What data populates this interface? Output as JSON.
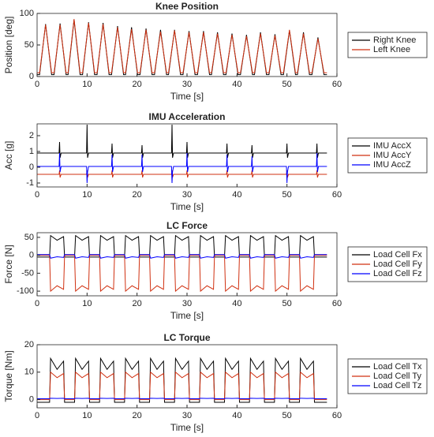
{
  "chart_data": [
    {
      "type": "line",
      "title": "Knee Position",
      "x_label": "Time [s]",
      "y_label": "Position [deg]",
      "legend": "right",
      "xlim": [
        0,
        60
      ],
      "xticks": [
        0,
        10,
        20,
        30,
        40,
        50,
        60
      ],
      "ylim": [
        0,
        100
      ],
      "yticks": [
        0,
        50,
        100
      ],
      "x": [
        0,
        0.5,
        1.7,
        2.9,
        3.4,
        4.6,
        5.8,
        6.2,
        7.4,
        8.6,
        9.1,
        10.3,
        11.5,
        12.0,
        13.2,
        14.4,
        14.9,
        16.1,
        17.3,
        17.7,
        18.9,
        20.1,
        20.6,
        21.8,
        23.0,
        23.5,
        24.7,
        25.9,
        26.3,
        27.5,
        28.7,
        29.2,
        30.4,
        31.6,
        32.1,
        33.3,
        34.5,
        34.9,
        36.1,
        37.3,
        37.8,
        39.0,
        40.2,
        40.7,
        41.9,
        43.1,
        43.5,
        44.7,
        45.9,
        46.4,
        47.6,
        48.8,
        49.3,
        50.5,
        51.7,
        52.1,
        53.3,
        54.5,
        55.0,
        56.2,
        57.4,
        58
      ],
      "series": [
        {
          "name": "Right Knee",
          "color": "#000000",
          "values": [
            3,
            3,
            83,
            3,
            3,
            84,
            3,
            3,
            90,
            3,
            3,
            86,
            3,
            3,
            85,
            3,
            3,
            80,
            3,
            3,
            78,
            3,
            3,
            76,
            3,
            3,
            74,
            3,
            3,
            74,
            3,
            3,
            72,
            3,
            3,
            72,
            3,
            3,
            70,
            3,
            3,
            68,
            3,
            3,
            66,
            3,
            3,
            70,
            3,
            3,
            67,
            3,
            3,
            73,
            3,
            3,
            70,
            3,
            3,
            62,
            3,
            3
          ]
        },
        {
          "name": "Left Knee",
          "color": "#d03010",
          "values": [
            6,
            6,
            82,
            6,
            6,
            82,
            6,
            6,
            91,
            6,
            6,
            85,
            6,
            6,
            83,
            6,
            6,
            78,
            6,
            6,
            75,
            6,
            6,
            74,
            6,
            6,
            71,
            6,
            6,
            73,
            6,
            6,
            70,
            6,
            6,
            70,
            6,
            6,
            68,
            6,
            6,
            66,
            6,
            6,
            64,
            6,
            6,
            68,
            6,
            6,
            65,
            6,
            6,
            74,
            6,
            6,
            68,
            6,
            6,
            60,
            6,
            6
          ]
        }
      ]
    },
    {
      "type": "line",
      "title": "IMU Acceleration",
      "x_label": "Time [s]",
      "y_label": "Acc [g]",
      "legend": "right",
      "xlim": [
        0,
        60
      ],
      "xticks": [
        0,
        10,
        20,
        30,
        40,
        50,
        60
      ],
      "ylim": [
        -1.25,
        2.75
      ],
      "yticks": [
        -1,
        0,
        1,
        2
      ],
      "x": [
        0,
        4.4,
        4.5,
        4.6,
        4.8,
        9.9,
        10,
        10.1,
        10.3,
        14.9,
        15,
        15.1,
        15.3,
        20.9,
        21,
        21.1,
        21.3,
        26.9,
        27,
        27.1,
        27.3,
        29.9,
        30,
        30.1,
        30.3,
        37.9,
        38,
        38.1,
        38.3,
        42.9,
        43,
        43.1,
        43.3,
        49.9,
        50,
        50.1,
        50.3,
        55.9,
        56,
        56.1,
        56.3,
        58
      ],
      "series": [
        {
          "name": "IMU AccX",
          "color": "#000000",
          "values": [
            0.9,
            0.9,
            1.6,
            0.6,
            0.9,
            0.9,
            2.7,
            0.6,
            0.9,
            0.9,
            1.5,
            0.6,
            0.9,
            0.9,
            1.4,
            0.6,
            0.9,
            0.9,
            2.7,
            0.6,
            0.9,
            0.9,
            1.6,
            0.6,
            0.9,
            0.9,
            1.5,
            0.6,
            0.9,
            0.9,
            1.4,
            0.6,
            0.9,
            0.9,
            1.5,
            0.6,
            0.9,
            0.9,
            1.5,
            0.6,
            0.9,
            0.9
          ]
        },
        {
          "name": "IMU AccY",
          "color": "#d03010",
          "values": [
            -0.45,
            -0.45,
            -0.2,
            -0.65,
            -0.45,
            -0.45,
            -0.2,
            -0.65,
            -0.45,
            -0.45,
            -0.2,
            -0.65,
            -0.45,
            -0.45,
            -0.2,
            -0.65,
            -0.45,
            -0.45,
            -0.2,
            -0.65,
            -0.45,
            -0.45,
            -0.2,
            -0.65,
            -0.45,
            -0.45,
            -0.2,
            -0.65,
            -0.45,
            -0.45,
            -0.2,
            -0.65,
            -0.45,
            -0.45,
            -0.2,
            -0.65,
            -0.45,
            -0.45,
            -0.2,
            -0.65,
            -0.45,
            -0.45
          ]
        },
        {
          "name": "IMU AccZ",
          "color": "#0000ff",
          "values": [
            0.05,
            0.05,
            0.9,
            -0.3,
            0.05,
            0.05,
            -1.0,
            -0.3,
            0.05,
            0.05,
            0.8,
            -0.3,
            0.05,
            0.05,
            0.8,
            -0.3,
            0.05,
            0.05,
            -1.0,
            -0.3,
            0.05,
            0.05,
            0.9,
            -0.3,
            0.05,
            0.05,
            0.8,
            -0.3,
            0.05,
            0.05,
            0.7,
            -0.3,
            0.05,
            0.05,
            -1.0,
            -0.3,
            0.05,
            0.05,
            0.9,
            -0.3,
            0.05,
            0.05
          ]
        }
      ]
    },
    {
      "type": "line",
      "title": "LC Force",
      "x_label": "Time [s]",
      "y_label": "Force [N]",
      "legend": "right",
      "xlim": [
        0,
        60
      ],
      "xticks": [
        0,
        10,
        20,
        30,
        40,
        50,
        60
      ],
      "ylim": [
        -113,
        63
      ],
      "yticks": [
        -100,
        -50,
        0,
        50
      ],
      "x": [
        0,
        2.5,
        2.7,
        4.0,
        5.3,
        5.5,
        7.5,
        7.7,
        9.0,
        10.3,
        10.5,
        12.5,
        12.7,
        14.0,
        15.3,
        15.5,
        17.5,
        17.7,
        19.0,
        20.3,
        20.5,
        22.5,
        22.7,
        24.0,
        25.3,
        25.5,
        27.5,
        27.7,
        29.0,
        30.3,
        30.5,
        32.5,
        32.7,
        34.0,
        35.3,
        35.5,
        37.5,
        37.7,
        39.0,
        40.3,
        40.5,
        42.5,
        42.7,
        44.0,
        45.3,
        45.5,
        47.5,
        47.7,
        49.0,
        50.3,
        50.5,
        52.5,
        52.7,
        54.0,
        55.3,
        55.5,
        58
      ],
      "series": [
        {
          "name": "Load Cell Fx",
          "color": "#000000",
          "values": [
            -5,
            -5,
            55,
            42,
            52,
            -5,
            -5,
            55,
            42,
            52,
            -5,
            -5,
            55,
            42,
            52,
            -5,
            -5,
            55,
            42,
            52,
            -5,
            -5,
            55,
            42,
            52,
            -5,
            -5,
            55,
            42,
            52,
            -5,
            -5,
            55,
            42,
            52,
            -5,
            -5,
            55,
            42,
            52,
            -5,
            -5,
            55,
            42,
            52,
            -5,
            -5,
            55,
            42,
            52,
            -5,
            -5,
            55,
            42,
            52,
            -5,
            -5
          ]
        },
        {
          "name": "Load Cell Fy",
          "color": "#d03010",
          "values": [
            0,
            0,
            -100,
            -85,
            -95,
            0,
            0,
            -100,
            -85,
            -95,
            0,
            0,
            -100,
            -85,
            -95,
            0,
            0,
            -100,
            -85,
            -95,
            0,
            0,
            -100,
            -85,
            -95,
            0,
            0,
            -100,
            -85,
            -95,
            0,
            0,
            -100,
            -85,
            -95,
            0,
            0,
            -100,
            -85,
            -95,
            0,
            0,
            -100,
            -85,
            -95,
            0,
            0,
            -100,
            -85,
            -95,
            0,
            0,
            -100,
            -85,
            -95,
            0,
            0
          ]
        },
        {
          "name": "Load Cell Fz",
          "color": "#0000ff",
          "values": [
            2,
            2,
            -8,
            -4,
            -6,
            2,
            2,
            -8,
            -4,
            -6,
            2,
            2,
            -8,
            -4,
            -6,
            2,
            2,
            -8,
            -4,
            -6,
            2,
            2,
            -8,
            -4,
            -6,
            2,
            2,
            -8,
            -4,
            -6,
            2,
            2,
            -8,
            -4,
            -6,
            2,
            2,
            -8,
            -4,
            -6,
            2,
            2,
            -8,
            -4,
            -6,
            2,
            2,
            -8,
            -4,
            -6,
            2,
            2,
            -8,
            -4,
            -6,
            2,
            2
          ]
        }
      ]
    },
    {
      "type": "line",
      "title": "LC Torque",
      "x_label": "Time [s]",
      "y_label": "Torque [Nm]",
      "legend": "right",
      "xlim": [
        0,
        60
      ],
      "xticks": [
        0,
        10,
        20,
        30,
        40,
        50,
        60
      ],
      "ylim": [
        -3,
        20
      ],
      "yticks": [
        0,
        10,
        20
      ],
      "x": [
        0,
        2.5,
        2.7,
        4.0,
        5.3,
        5.5,
        7.5,
        7.7,
        9.0,
        10.3,
        10.5,
        12.5,
        12.7,
        14.0,
        15.3,
        15.5,
        17.5,
        17.7,
        19.0,
        20.3,
        20.5,
        22.5,
        22.7,
        24.0,
        25.3,
        25.5,
        27.5,
        27.7,
        29.0,
        30.3,
        30.5,
        32.5,
        32.7,
        34.0,
        35.3,
        35.5,
        37.5,
        37.7,
        39.0,
        40.3,
        40.5,
        42.5,
        42.7,
        44.0,
        45.3,
        45.5,
        47.5,
        47.7,
        49.0,
        50.3,
        50.5,
        52.5,
        52.7,
        54.0,
        55.3,
        55.5,
        58
      ],
      "series": [
        {
          "name": "Load Cell Tx",
          "color": "#000000",
          "values": [
            -1,
            -1,
            15,
            11,
            14,
            -1,
            -1,
            15,
            11,
            14,
            -1,
            -1,
            15,
            11,
            14,
            -1,
            -1,
            15,
            11,
            14,
            -1,
            -1,
            15,
            11,
            14,
            -1,
            -1,
            15,
            11,
            14,
            -1,
            -1,
            15,
            11,
            14,
            -1,
            -1,
            15,
            11,
            14,
            -1,
            -1,
            15,
            11,
            14,
            -1,
            -1,
            15,
            11,
            14,
            -1,
            -1,
            15,
            11,
            14,
            -1,
            -1
          ]
        },
        {
          "name": "Load Cell Ty",
          "color": "#d03010",
          "values": [
            0,
            0,
            10,
            8,
            9.5,
            0,
            0,
            10,
            8,
            9.5,
            0,
            0,
            10,
            8,
            9.5,
            0,
            0,
            10,
            8,
            9.5,
            0,
            0,
            10,
            8,
            9.5,
            0,
            0,
            10,
            8,
            9.5,
            0,
            0,
            10,
            8,
            9.5,
            0,
            0,
            10,
            8,
            9.5,
            0,
            0,
            10,
            8,
            9.5,
            0,
            0,
            10,
            8,
            9.5,
            0,
            0,
            10,
            8,
            9.5,
            0,
            0
          ]
        },
        {
          "name": "Load Cell Tz",
          "color": "#0000ff",
          "values": [
            0.3,
            0.3,
            0.5,
            0.4,
            0.5,
            0.3,
            0.3,
            0.5,
            0.4,
            0.5,
            0.3,
            0.3,
            0.5,
            0.4,
            0.5,
            0.3,
            0.3,
            0.5,
            0.4,
            0.5,
            0.3,
            0.3,
            0.5,
            0.4,
            0.5,
            0.3,
            0.3,
            0.5,
            0.4,
            0.5,
            0.3,
            0.3,
            0.5,
            0.4,
            0.5,
            0.3,
            0.3,
            0.5,
            0.4,
            0.5,
            0.3,
            0.3,
            0.5,
            0.4,
            0.5,
            0.3,
            0.3,
            0.5,
            0.4,
            0.5,
            0.3,
            0.3,
            0.5,
            0.4,
            0.5,
            0.3,
            0.3
          ]
        }
      ]
    }
  ]
}
